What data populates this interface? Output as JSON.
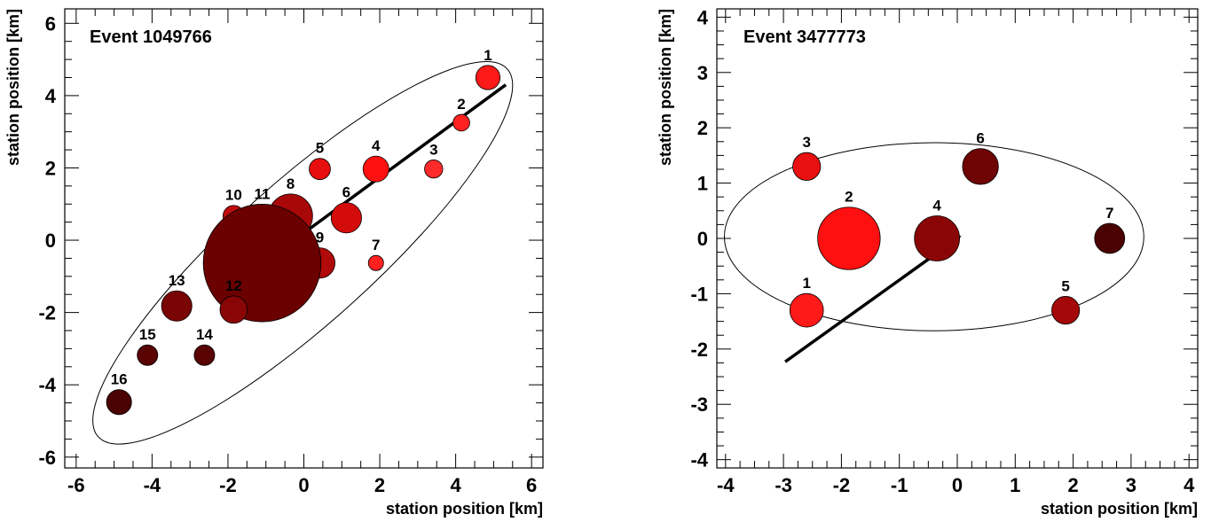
{
  "chart_data": [
    {
      "type": "scatter",
      "title": "Event 1049766",
      "xlabel": "station position [km]",
      "ylabel": "station position [km]",
      "xlim": [
        -6.3,
        6.3
      ],
      "ylim": [
        -6.3,
        6.4
      ],
      "xticks": [
        -6,
        -4,
        -2,
        0,
        2,
        4,
        6
      ],
      "xtick_labels": [
        "-6",
        "-4",
        "-2",
        "0",
        "2",
        "4",
        "6"
      ],
      "yticks": [
        -6,
        -4,
        -2,
        0,
        2,
        4,
        6
      ],
      "ytick_labels": [
        "-6",
        "-4",
        "-2",
        "0",
        "2",
        "4",
        "6"
      ],
      "grid": false,
      "stations": [
        {
          "label": "1",
          "x": 4.85,
          "y": 4.5,
          "size": 0.32,
          "color": "#ff1a1a"
        },
        {
          "label": "2",
          "x": 4.15,
          "y": 3.25,
          "size": 0.22,
          "color": "#ff2020"
        },
        {
          "label": "3",
          "x": 3.42,
          "y": 1.97,
          "size": 0.24,
          "color": "#ff2a2a"
        },
        {
          "label": "4",
          "x": 1.9,
          "y": 1.97,
          "size": 0.34,
          "color": "#ff1111"
        },
        {
          "label": "5",
          "x": 0.42,
          "y": 1.97,
          "size": 0.28,
          "color": "#e60e0e"
        },
        {
          "label": "6",
          "x": 1.12,
          "y": 0.62,
          "size": 0.4,
          "color": "#d40b0b"
        },
        {
          "label": "7",
          "x": 1.9,
          "y": -0.63,
          "size": 0.2,
          "color": "#ff2020"
        },
        {
          "label": "8",
          "x": -0.35,
          "y": 0.67,
          "size": 0.58,
          "color": "#a80808"
        },
        {
          "label": "9",
          "x": 0.42,
          "y": -0.63,
          "size": 0.4,
          "color": "#b00a0a"
        },
        {
          "label": "10",
          "x": -1.85,
          "y": 0.67,
          "size": 0.28,
          "color": "#c20c0c"
        },
        {
          "label": "11",
          "x": -1.1,
          "y": -0.63,
          "size": 1.55,
          "color": "#6b0000"
        },
        {
          "label": "12",
          "x": -1.85,
          "y": -1.92,
          "size": 0.36,
          "color": "#8a0606"
        },
        {
          "label": "13",
          "x": -3.35,
          "y": -1.82,
          "size": 0.4,
          "color": "#7a0505"
        },
        {
          "label": "14",
          "x": -2.62,
          "y": -3.18,
          "size": 0.27,
          "color": "#5a0303"
        },
        {
          "label": "15",
          "x": -4.12,
          "y": -3.18,
          "size": 0.27,
          "color": "#5a0303"
        },
        {
          "label": "16",
          "x": -4.87,
          "y": -4.48,
          "size": 0.33,
          "color": "#4a0202"
        }
      ],
      "ellipse": {
        "cx": -0.03,
        "cy": -0.35,
        "rx": 7.25,
        "ry": 1.95,
        "angle_deg": 42
      },
      "arrow": {
        "from": [
          5.32,
          4.3
        ],
        "to": [
          -0.35,
          -0.07
        ]
      }
    },
    {
      "type": "scatter",
      "title": "Event 3477773",
      "xlabel": "station position [km]",
      "ylabel": "station position [km]",
      "xlim": [
        -4.15,
        4.15
      ],
      "ylim": [
        -4.15,
        4.15
      ],
      "xticks": [
        -4,
        -3,
        -2,
        -1,
        0,
        1,
        2,
        3,
        4
      ],
      "xtick_labels": [
        "-4",
        "-3",
        "-2",
        "-1",
        "0",
        "1",
        "2",
        "3",
        "4"
      ],
      "yticks": [
        -4,
        -3,
        -2,
        -1,
        0,
        1,
        2,
        3,
        4
      ],
      "ytick_labels": [
        "-4",
        "-3",
        "-2",
        "-1",
        "0",
        "1",
        "2",
        "3",
        "4"
      ],
      "grid": false,
      "stations": [
        {
          "label": "1",
          "x": -2.6,
          "y": -1.3,
          "size": 0.29,
          "color": "#ff1a1a"
        },
        {
          "label": "2",
          "x": -1.87,
          "y": 0.0,
          "size": 0.54,
          "color": "#ff1010"
        },
        {
          "label": "3",
          "x": -2.6,
          "y": 1.3,
          "size": 0.24,
          "color": "#e81010"
        },
        {
          "label": "4",
          "x": -0.35,
          "y": 0.0,
          "size": 0.39,
          "color": "#8a0606"
        },
        {
          "label": "5",
          "x": 1.87,
          "y": -1.3,
          "size": 0.24,
          "color": "#a50808"
        },
        {
          "label": "6",
          "x": 0.4,
          "y": 1.3,
          "size": 0.31,
          "color": "#6e0404"
        },
        {
          "label": "7",
          "x": 2.63,
          "y": 0.0,
          "size": 0.26,
          "color": "#4a0202"
        }
      ],
      "ellipse": {
        "cx": -0.4,
        "cy": 0.03,
        "rx": 3.62,
        "ry": 1.7,
        "angle_deg": 0
      },
      "arrow": {
        "from": [
          -2.97,
          -2.23
        ],
        "to": [
          0.07,
          0.05
        ]
      }
    }
  ]
}
